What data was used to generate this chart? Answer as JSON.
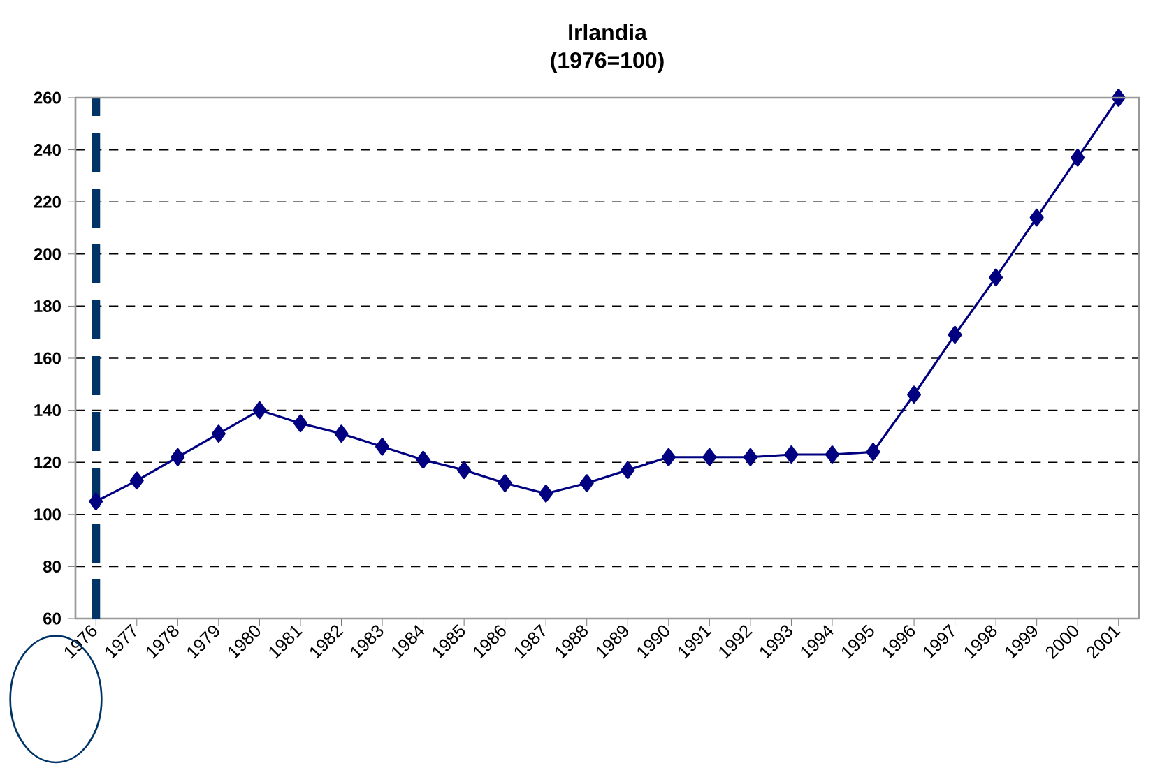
{
  "chart_data": {
    "type": "line",
    "title": "Irlandia",
    "subtitle": "(1976=100)",
    "categories": [
      "1976",
      "1977",
      "1978",
      "1979",
      "1980",
      "1981",
      "1982",
      "1983",
      "1984",
      "1985",
      "1986",
      "1987",
      "1988",
      "1989",
      "1990",
      "1991",
      "1992",
      "1993",
      "1994",
      "1995",
      "1996",
      "1997",
      "1998",
      "1999",
      "2000",
      "2001"
    ],
    "series": [
      {
        "color": "#000080",
        "values": [
          105,
          113,
          122,
          131,
          140,
          135,
          131,
          126,
          121,
          117,
          112,
          108,
          112,
          117,
          122,
          122,
          122,
          123,
          123,
          124,
          146,
          169,
          191,
          214,
          237,
          260
        ]
      }
    ],
    "ylim": [
      60,
      260
    ],
    "yticks": [
      60,
      80,
      100,
      120,
      140,
      160,
      180,
      200,
      220,
      240,
      260
    ],
    "ref_lines": [
      {
        "axis": "x",
        "value": "1976",
        "color": "#003366",
        "line_style": "dashed"
      }
    ],
    "grid": "y",
    "marker": "diamond",
    "line_style": "solid"
  }
}
